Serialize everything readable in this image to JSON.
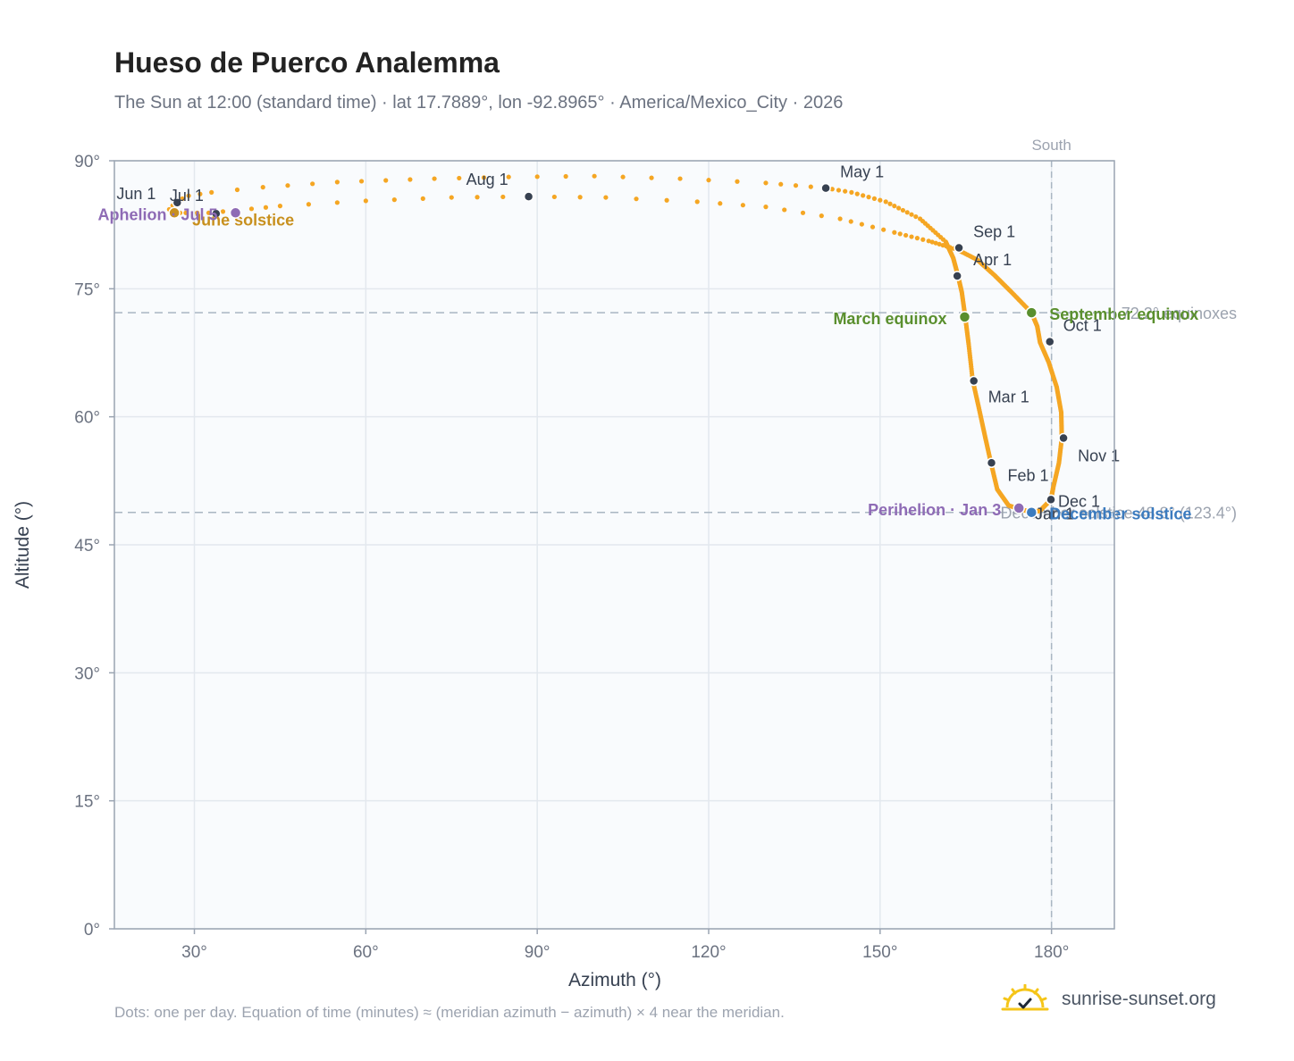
{
  "header": {
    "title": "Hueso de Puerco Analemma",
    "subtitle": "The Sun at 12:00 (standard time) · lat 17.7889°, lon -92.8965° · America/Mexico_City · 2026"
  },
  "footer": {
    "note": "Dots: one per day. Equation of time (minutes) ≈ (meridian azimuth − azimuth) × 4 near the meridian."
  },
  "brand": {
    "name": "sunrise-sunset.org",
    "logo_icon": "sun-logo-icon"
  },
  "colors": {
    "curve": "#f5a623",
    "month_marker": "#374151",
    "equinox": "#5a8f2e",
    "december_solstice": "#3b7bbf",
    "june_solstice": "#c8901e",
    "apsis": "#8e6bb5",
    "plot_bg": "#f9fbfd"
  },
  "chart_data": {
    "type": "scatter",
    "xlabel": "Azimuth (°)",
    "ylabel": "Altitude (°)",
    "xlim": [
      16,
      191
    ],
    "ylim": [
      0,
      90
    ],
    "xticks": [
      30,
      60,
      90,
      120,
      150,
      180
    ],
    "xtick_labels": [
      "30°",
      "60°",
      "90°",
      "120°",
      "150°",
      "180°"
    ],
    "yticks": [
      0,
      15,
      30,
      45,
      60,
      75,
      90
    ],
    "ytick_labels": [
      "0°",
      "15°",
      "30°",
      "45°",
      "60°",
      "75°",
      "90°"
    ],
    "grid": true,
    "meridian": {
      "azimuth": 180,
      "label": "South"
    },
    "reference_lines": [
      {
        "altitude": 72.2,
        "label": "72.2° equinoxes"
      },
      {
        "altitude": 48.8,
        "label": "December solstice 48.8° (123.4°)"
      }
    ],
    "curve_path": [
      [
        176.5,
        48.8
      ],
      [
        172.5,
        49.6
      ],
      [
        170.5,
        51.5
      ],
      [
        169.4,
        54.6
      ],
      [
        168.4,
        57.6
      ],
      [
        167.3,
        61.0
      ],
      [
        166.2,
        64.3
      ],
      [
        165.5,
        68.5
      ],
      [
        164.9,
        71.7
      ],
      [
        164.3,
        74.6
      ],
      [
        163.6,
        76.6
      ],
      [
        162.8,
        78.6
      ],
      [
        161.5,
        80.5
      ],
      [
        157.0,
        83.2
      ],
      [
        151.0,
        85.2
      ],
      [
        145.0,
        86.3
      ],
      [
        140.5,
        86.8
      ],
      [
        130.0,
        87.4
      ],
      [
        115.0,
        87.9
      ],
      [
        100.0,
        88.2
      ],
      [
        85.0,
        88.1
      ],
      [
        72.0,
        87.9
      ],
      [
        55.0,
        87.5
      ],
      [
        42.0,
        86.9
      ],
      [
        33.0,
        86.3
      ],
      [
        29.0,
        85.9
      ],
      [
        26.8,
        85.2
      ],
      [
        25.6,
        84.3
      ],
      [
        26.5,
        83.9
      ],
      [
        28.5,
        83.9
      ],
      [
        32.5,
        83.9
      ],
      [
        37.5,
        84.2
      ],
      [
        45.0,
        84.7
      ],
      [
        60.0,
        85.3
      ],
      [
        75.0,
        85.7
      ],
      [
        88.5,
        85.8
      ],
      [
        102.0,
        85.7
      ],
      [
        118.0,
        85.2
      ],
      [
        130.0,
        84.6
      ],
      [
        143.0,
        83.2
      ],
      [
        152.5,
        81.6
      ],
      [
        158.5,
        80.6
      ],
      [
        163.5,
        79.6
      ],
      [
        167.0,
        78.4
      ],
      [
        170.0,
        76.6
      ],
      [
        173.0,
        74.6
      ],
      [
        176.5,
        72.2
      ],
      [
        177.5,
        70.6
      ],
      [
        178.0,
        68.7
      ],
      [
        179.5,
        66.4
      ],
      [
        180.9,
        63.5
      ],
      [
        181.7,
        60.5
      ],
      [
        181.8,
        57.5
      ],
      [
        181.3,
        54.6
      ],
      [
        180.3,
        51.7
      ],
      [
        179.9,
        50.3
      ],
      [
        178.0,
        49.0
      ],
      [
        176.5,
        48.8
      ]
    ],
    "curve_points_per_segment": [
      16,
      16,
      16,
      16,
      16,
      16,
      16,
      16,
      16,
      16,
      16,
      16,
      10,
      8,
      6,
      4,
      4,
      3,
      3,
      3,
      3,
      4,
      3,
      2,
      2,
      2,
      2,
      2,
      2,
      2,
      2,
      3,
      3,
      3,
      3,
      3,
      3,
      3,
      4,
      5,
      6,
      8,
      12,
      14,
      16,
      16,
      16,
      16,
      16,
      16,
      16,
      16,
      16,
      16,
      16,
      16,
      16
    ],
    "month_markers": [
      {
        "label": "Jan 1",
        "az": 179.9,
        "alt": 50.3
      },
      {
        "label": "Feb 1",
        "az": 169.5,
        "alt": 54.6
      },
      {
        "label": "Mar 1",
        "az": 166.4,
        "alt": 64.2
      },
      {
        "label": "Apr 1",
        "az": 163.5,
        "alt": 76.5
      },
      {
        "label": "May 1",
        "az": 140.5,
        "alt": 86.8
      },
      {
        "label": "Jun 1",
        "az": 27.0,
        "alt": 85.1
      },
      {
        "label": "Jul 1",
        "az": 33.8,
        "alt": 83.8
      },
      {
        "label": "Aug 1",
        "az": 88.5,
        "alt": 85.8
      },
      {
        "label": "Sep 1",
        "az": 163.8,
        "alt": 79.8
      },
      {
        "label": "Oct 1",
        "az": 179.7,
        "alt": 68.8
      },
      {
        "label": "Nov 1",
        "az": 182.1,
        "alt": 57.5
      },
      {
        "label": "Dec 1",
        "az": 179.9,
        "alt": 50.3
      }
    ],
    "events": [
      {
        "label": "March equinox",
        "az": 164.8,
        "alt": 71.7,
        "color": "#5a8f2e"
      },
      {
        "label": "September equinox",
        "az": 176.5,
        "alt": 72.2,
        "color": "#5a8f2e"
      },
      {
        "label": "June solstice",
        "az": 26.5,
        "alt": 83.9,
        "color": "#c8901e"
      },
      {
        "label": "December solstice",
        "az": 176.5,
        "alt": 48.8,
        "color": "#3b7bbf"
      },
      {
        "label": "Perihelion · Jan 3",
        "az": 174.3,
        "alt": 49.3,
        "color": "#8e6bb5"
      },
      {
        "label": "Aphelion · Jul 5",
        "az": 37.2,
        "alt": 83.9,
        "color": "#8e6bb5"
      }
    ]
  }
}
